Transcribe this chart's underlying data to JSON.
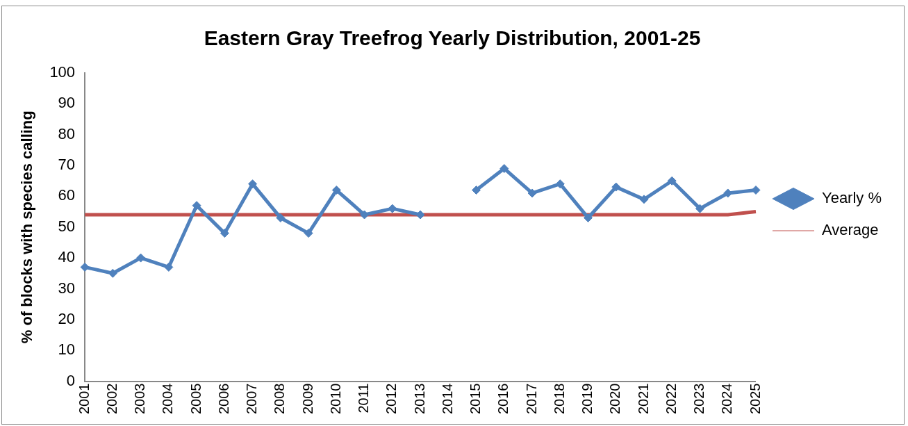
{
  "chart_data": {
    "type": "line",
    "title": "Eastern Gray Treefrog Yearly Distribution, 2001-25",
    "ylabel": "% of blocks with species calling",
    "categories": [
      "2001",
      "2002",
      "2003",
      "2004",
      "2005",
      "2006",
      "2007",
      "2008",
      "2009",
      "2010",
      "2011",
      "2012",
      "2013",
      "2014",
      "2015",
      "2016",
      "2017",
      "2018",
      "2019",
      "2020",
      "2021",
      "2022",
      "2023",
      "2024",
      "2025"
    ],
    "series": [
      {
        "name": "Yearly %",
        "color": "#4f81bd",
        "marker": "diamond",
        "values": [
          37,
          35,
          40,
          37,
          57,
          48,
          64,
          53,
          48,
          62,
          54,
          56,
          54,
          null,
          62,
          69,
          61,
          64,
          53,
          63,
          59,
          65,
          56,
          61,
          62
        ]
      },
      {
        "name": "Average",
        "color": "#c0504d",
        "marker": "none",
        "values": [
          54,
          54,
          54,
          54,
          54,
          54,
          54,
          54,
          54,
          54,
          54,
          54,
          54,
          54,
          54,
          54,
          54,
          54,
          54,
          54,
          54,
          54,
          54,
          54,
          55
        ]
      }
    ],
    "ylim": [
      0,
      100
    ],
    "yticks": [
      0,
      10,
      20,
      30,
      40,
      50,
      60,
      70,
      80,
      90,
      100
    ],
    "grid": false,
    "legend": "right",
    "line_style": "solid"
  }
}
